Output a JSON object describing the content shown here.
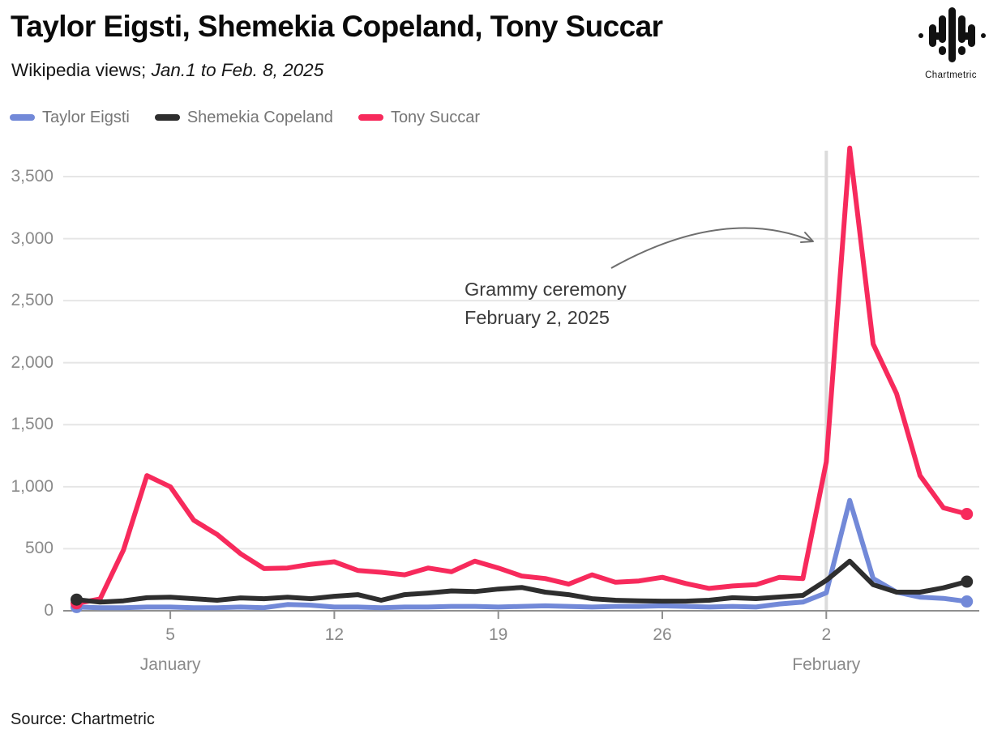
{
  "header": {
    "title": "Taylor Eigsti, Shemekia Copeland, Tony Succar",
    "subtitle_prefix": "Wikipedia views; ",
    "subtitle_italic": "Jan.1 to Feb. 8, 2025"
  },
  "brand": {
    "name": "Chartmetric"
  },
  "legend": [
    {
      "label": "Taylor Eigsti",
      "color": "#7289d8"
    },
    {
      "label": "Shemekia Copeland",
      "color": "#2e2e2e"
    },
    {
      "label": "Tony Succar",
      "color": "#f72a5c"
    }
  ],
  "annotation": {
    "line1": "Grammy ceremony",
    "line2": "February 2, 2025"
  },
  "source": "Source: Chartmetric",
  "chart_data": {
    "type": "line",
    "title": "Taylor Eigsti, Shemekia Copeland, Tony Succar",
    "subtitle": "Wikipedia views; Jan.1 to Feb. 8, 2025",
    "x_start": "2025-01-01",
    "x_end": "2025-02-08",
    "n_points": 39,
    "grid": "horizontal",
    "legend_position": "top-left",
    "ylim": [
      0,
      3750
    ],
    "y_ticks": [
      0,
      500,
      1000,
      1500,
      2000,
      2500,
      3000,
      3500
    ],
    "y_tick_labels": [
      "0",
      "500",
      "1,000",
      "1,500",
      "2,000",
      "2,500",
      "3,000",
      "3,500"
    ],
    "x_ticks": [
      {
        "label": "5",
        "index": 4
      },
      {
        "label": "12",
        "index": 11
      },
      {
        "label": "19",
        "index": 18
      },
      {
        "label": "26",
        "index": 25
      },
      {
        "label": "2",
        "index": 32
      }
    ],
    "month_labels": [
      {
        "label": "January",
        "index": 4
      },
      {
        "label": "February",
        "index": 32
      }
    ],
    "event_line": {
      "date": "2025-02-02",
      "x_index": 32,
      "color": "#dbdbdb"
    },
    "series": [
      {
        "name": "Taylor Eigsti",
        "color": "#7289d8",
        "start_dot": true,
        "end_dot": true,
        "values": [
          30,
          25,
          25,
          30,
          30,
          25,
          25,
          30,
          25,
          50,
          45,
          30,
          30,
          25,
          30,
          30,
          35,
          35,
          30,
          35,
          40,
          35,
          30,
          35,
          35,
          40,
          35,
          30,
          35,
          30,
          55,
          70,
          145,
          890,
          260,
          150,
          110,
          100,
          75
        ]
      },
      {
        "name": "Shemekia Copeland",
        "color": "#2e2e2e",
        "start_dot": true,
        "end_dot": true,
        "values": [
          90,
          70,
          80,
          105,
          110,
          97,
          85,
          104,
          97,
          110,
          97,
          117,
          130,
          85,
          130,
          143,
          160,
          155,
          175,
          188,
          150,
          130,
          97,
          85,
          80,
          78,
          78,
          85,
          105,
          98,
          111,
          124,
          245,
          400,
          210,
          150,
          150,
          185,
          235
        ]
      },
      {
        "name": "Tony Succar",
        "color": "#f72a5c",
        "start_dot": true,
        "end_dot": true,
        "values": [
          60,
          95,
          490,
          1090,
          1000,
          730,
          615,
          460,
          340,
          345,
          375,
          395,
          325,
          310,
          290,
          345,
          315,
          400,
          345,
          280,
          260,
          215,
          290,
          230,
          240,
          270,
          220,
          180,
          200,
          210,
          270,
          260,
          1200,
          3730,
          2150,
          1750,
          1090,
          830,
          780
        ]
      }
    ]
  }
}
